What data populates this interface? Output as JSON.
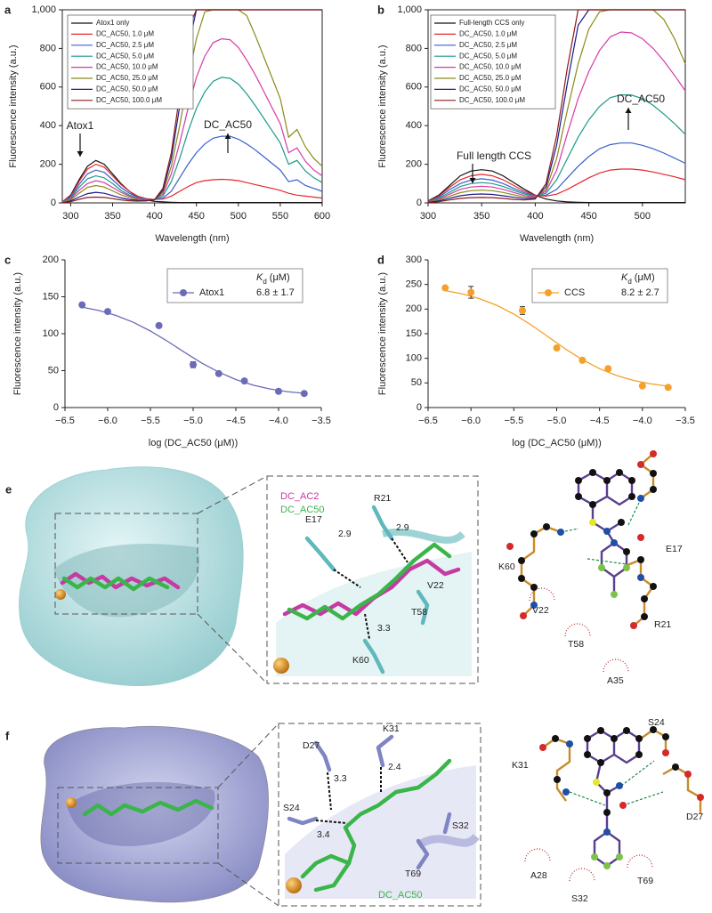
{
  "chart_data": [
    {
      "type": "line",
      "label": "a",
      "xlabel": "Wavelength (nm)",
      "ylabel": "Fluorescence intensity (a.u.)",
      "annotations": [
        "Atox1",
        "DC_AC50"
      ],
      "x": [
        290,
        300,
        310,
        320,
        330,
        340,
        350,
        360,
        370,
        380,
        390,
        400,
        410,
        420,
        430,
        440,
        450,
        460,
        470,
        480,
        490,
        500,
        510,
        520,
        530,
        540,
        550,
        560,
        570,
        580,
        590,
        600
      ],
      "xlim": [
        290,
        600
      ],
      "xticks": [
        300,
        350,
        400,
        450,
        500,
        550,
        600
      ],
      "ylim": [
        0,
        1000
      ],
      "yticks": [
        0,
        200,
        400,
        600,
        800,
        {
          "value": 1000,
          "label": "1,000"
        }
      ],
      "series": [
        {
          "name": "Atox1 only",
          "color": "#111111",
          "values": [
            5,
            40,
            120,
            190,
            220,
            200,
            150,
            100,
            60,
            30,
            15,
            8,
            5,
            3,
            2,
            2,
            2,
            2,
            2,
            2,
            2,
            2,
            2,
            2,
            2,
            2,
            2,
            2,
            2,
            2,
            2,
            2
          ]
        },
        {
          "name": "DC_AC50, 1.0 μM",
          "color": "#e8262a",
          "values": [
            5,
            35,
            110,
            175,
            200,
            185,
            140,
            95,
            60,
            35,
            22,
            18,
            20,
            35,
            60,
            85,
            105,
            115,
            120,
            122,
            120,
            115,
            105,
            95,
            85,
            75,
            65,
            50,
            40,
            35,
            30,
            25
          ]
        },
        {
          "name": "DC_AC50, 2.5 μM",
          "color": "#3a5fcd",
          "values": [
            4,
            30,
            95,
            150,
            170,
            158,
            120,
            80,
            50,
            30,
            20,
            17,
            25,
            60,
            130,
            200,
            260,
            305,
            335,
            345,
            345,
            330,
            305,
            275,
            240,
            205,
            170,
            110,
            120,
            90,
            75,
            60
          ]
        },
        {
          "name": "DC_AC50, 5.0 μM",
          "color": "#1a9a8a",
          "values": [
            3,
            25,
            80,
            125,
            140,
            130,
            100,
            65,
            40,
            25,
            18,
            17,
            35,
            110,
            230,
            370,
            490,
            575,
            630,
            650,
            645,
            615,
            565,
            505,
            440,
            375,
            310,
            200,
            220,
            165,
            130,
            105
          ]
        },
        {
          "name": "DC_AC50, 10.0 μM",
          "color": "#d63aa6",
          "values": [
            3,
            20,
            65,
            100,
            115,
            105,
            80,
            55,
            35,
            22,
            17,
            17,
            45,
            150,
            310,
            490,
            650,
            760,
            830,
            850,
            845,
            805,
            740,
            665,
            580,
            495,
            410,
            260,
            285,
            215,
            170,
            140
          ]
        },
        {
          "name": "DC_AC50, 25.0 μM",
          "color": "#8a8a1a",
          "values": [
            2,
            15,
            50,
            80,
            90,
            82,
            62,
            42,
            28,
            18,
            15,
            16,
            55,
            190,
            400,
            640,
            850,
            990,
            1000,
            1000,
            1000,
            1000,
            970,
            870,
            760,
            650,
            540,
            340,
            380,
            290,
            230,
            190
          ]
        },
        {
          "name": "DC_AC50, 50.0 μM",
          "color": "#1a1a8a",
          "values": [
            1,
            10,
            30,
            48,
            55,
            50,
            38,
            26,
            18,
            13,
            12,
            16,
            65,
            230,
            500,
            800,
            1000,
            1000,
            1000,
            1000,
            1000,
            1000,
            1000,
            1000,
            1000,
            1000,
            1000,
            1000,
            1000,
            1000,
            1000,
            1000
          ]
        },
        {
          "name": "DC_AC50, 100.0 μM",
          "color": "#8b1a1a",
          "values": [
            1,
            6,
            18,
            28,
            30,
            28,
            22,
            15,
            11,
            9,
            10,
            17,
            75,
            260,
            560,
            900,
            1000,
            1000,
            1000,
            1000,
            1000,
            1000,
            1000,
            1000,
            1000,
            1000,
            1000,
            1000,
            1000,
            1000,
            1000,
            1000
          ]
        }
      ]
    },
    {
      "type": "line",
      "label": "b",
      "xlabel": "Wavelength (nm)",
      "ylabel": "Fluorescence intensity (a.u.)",
      "annotations": [
        "Full length CCS",
        "DC_AC50"
      ],
      "x": [
        300,
        310,
        320,
        330,
        340,
        350,
        360,
        370,
        380,
        390,
        400,
        410,
        420,
        430,
        440,
        450,
        460,
        470,
        480,
        490,
        500,
        510,
        520,
        530,
        540
      ],
      "xlim": [
        300,
        540
      ],
      "xticks": [
        300,
        350,
        400,
        450,
        500
      ],
      "ylim": [
        0,
        1000
      ],
      "yticks": [
        0,
        200,
        400,
        600,
        800,
        {
          "value": 1000,
          "label": "1,000"
        }
      ],
      "series": [
        {
          "name": "Full-length CCS only",
          "color": "#111111",
          "values": [
            10,
            40,
            90,
            140,
            165,
            172,
            165,
            140,
            105,
            70,
            40,
            20,
            10,
            5,
            3,
            2,
            2,
            2,
            2,
            2,
            2,
            2,
            2,
            2,
            2
          ]
        },
        {
          "name": "DC_AC50, 1.0 μM",
          "color": "#e8262a",
          "values": [
            8,
            35,
            80,
            120,
            140,
            148,
            140,
            120,
            90,
            60,
            40,
            35,
            45,
            70,
            100,
            130,
            155,
            170,
            175,
            175,
            170,
            160,
            148,
            135,
            120
          ]
        },
        {
          "name": "DC_AC50, 2.5 μM",
          "color": "#3a5fcd",
          "values": [
            7,
            30,
            68,
            100,
            118,
            125,
            118,
            100,
            75,
            52,
            38,
            40,
            70,
            130,
            190,
            240,
            280,
            302,
            310,
            310,
            298,
            280,
            258,
            232,
            205
          ]
        },
        {
          "name": "DC_AC50, 5.0 μM",
          "color": "#1a9a8a",
          "values": [
            6,
            25,
            55,
            85,
            100,
            105,
            100,
            85,
            65,
            45,
            35,
            50,
            120,
            230,
            340,
            430,
            500,
            545,
            560,
            558,
            540,
            505,
            460,
            410,
            355
          ]
        },
        {
          "name": "DC_AC50, 10.0 μM",
          "color": "#d63aa6",
          "values": [
            5,
            20,
            45,
            70,
            82,
            86,
            82,
            70,
            54,
            38,
            32,
            60,
            170,
            360,
            540,
            680,
            790,
            860,
            885,
            880,
            850,
            800,
            735,
            660,
            580
          ]
        },
        {
          "name": "DC_AC50, 25.0 μM",
          "color": "#8a8a1a",
          "values": [
            4,
            15,
            35,
            53,
            63,
            66,
            63,
            54,
            42,
            30,
            28,
            70,
            230,
            480,
            720,
            900,
            990,
            1000,
            1000,
            1000,
            1000,
            1000,
            950,
            850,
            720
          ]
        },
        {
          "name": "DC_AC50, 50.0 μM",
          "color": "#1a1a8a",
          "values": [
            3,
            10,
            24,
            37,
            44,
            46,
            44,
            37,
            29,
            22,
            24,
            85,
            300,
            620,
            920,
            1000,
            1000,
            1000,
            1000,
            1000,
            1000,
            1000,
            1000,
            1000,
            1000
          ]
        },
        {
          "name": "DC_AC50, 100.0 μM",
          "color": "#8b1a1a",
          "values": [
            2,
            6,
            15,
            23,
            27,
            28,
            27,
            23,
            18,
            15,
            20,
            100,
            350,
            700,
            1000,
            1000,
            1000,
            1000,
            1000,
            1000,
            1000,
            1000,
            1000,
            1000,
            1000
          ]
        }
      ]
    },
    {
      "type": "scatter",
      "label": "c",
      "xlabel": "log (DC_AC50 (μM))",
      "ylabel": "Fluorescence intensity (a.u.)",
      "name": "Atox1",
      "color": "#6b6bb8",
      "kd_symbol": "K",
      "kd_subscript": "d",
      "kd_unit": "(μM)",
      "kd": "6.8 ± 1.7",
      "x": [
        -6.3,
        -6.0,
        -5.4,
        -5.0,
        -4.7,
        -4.4,
        -4.0,
        -3.7
      ],
      "values": [
        139,
        130,
        111,
        58,
        46,
        36,
        22,
        19
      ],
      "errors": [
        2,
        2,
        2,
        4,
        2,
        2,
        2,
        2
      ],
      "fit": {
        "x": [
          -6.3,
          -6.1,
          -5.9,
          -5.7,
          -5.5,
          -5.3,
          -5.1,
          -4.9,
          -4.7,
          -4.5,
          -4.3,
          -4.1,
          -3.9,
          -3.7
        ],
        "values": [
          136,
          131.3,
          124.6,
          115.4,
          103.6,
          89.7,
          74.8,
          60.4,
          47.9,
          37.9,
          30.5,
          25.2,
          21.6,
          19.3
        ]
      },
      "xlim": [
        -6.5,
        -3.5
      ],
      "xticks": [
        {
          "value": -6.5,
          "label": "−6.5"
        },
        {
          "value": -6.0,
          "label": "−6.0"
        },
        {
          "value": -5.5,
          "label": "−5.5"
        },
        {
          "value": -5.0,
          "label": "−5.0"
        },
        {
          "value": -4.5,
          "label": "−4.5"
        },
        {
          "value": -4.0,
          "label": "−4.0"
        },
        {
          "value": -3.5,
          "label": "−3.5"
        }
      ],
      "ylim": [
        0,
        200
      ],
      "yticks": [
        0,
        50,
        100,
        150,
        200
      ]
    },
    {
      "type": "scatter",
      "label": "d",
      "xlabel": "log (DC_AC50 (μM))",
      "ylabel": "Fluorescence intensity (a.u.)",
      "name": "CCS",
      "color": "#f5a02a",
      "kd_symbol": "K",
      "kd_subscript": "d",
      "kd_unit": "(μM)",
      "kd": "8.2 ± 2.7",
      "x": [
        -6.3,
        -6.0,
        -5.4,
        -5.0,
        -4.7,
        -4.4,
        -4.0,
        -3.7
      ],
      "values": [
        243,
        234,
        197,
        121,
        96,
        79,
        44,
        41
      ],
      "errors": [
        3,
        12,
        8,
        3,
        3,
        3,
        3,
        3
      ],
      "fit": {
        "x": [
          -6.3,
          -6.1,
          -5.9,
          -5.7,
          -5.5,
          -5.3,
          -5.1,
          -4.9,
          -4.7,
          -4.5,
          -4.3,
          -4.1,
          -3.9,
          -3.7
        ],
        "values": [
          237.5,
          230.9,
          221.2,
          207.6,
          189.8,
          168,
          143.7,
          119.3,
          97.2,
          79,
          65,
          55,
          48,
          43.4
        ]
      },
      "xlim": [
        -6.5,
        -3.5
      ],
      "xticks": [
        {
          "value": -6.5,
          "label": "−6.5"
        },
        {
          "value": -6.0,
          "label": "−6.0"
        },
        {
          "value": -5.5,
          "label": "−5.5"
        },
        {
          "value": -5.0,
          "label": "−5.0"
        },
        {
          "value": -4.5,
          "label": "−4.5"
        },
        {
          "value": -4.0,
          "label": "−4.0"
        },
        {
          "value": -3.5,
          "label": "−3.5"
        }
      ],
      "ylim": [
        0,
        300
      ],
      "yticks": [
        0,
        50,
        100,
        150,
        200,
        250,
        300
      ]
    }
  ],
  "panel_e": {
    "label": "e",
    "zoom": {
      "ligand_1": "DC_AC2",
      "ligand_2": "DC_AC50",
      "residues": [
        "R21",
        "E17",
        "V22",
        "T58",
        "K60"
      ],
      "distances": [
        "2.9",
        "2.9",
        "3.3"
      ]
    },
    "interaction_map": {
      "residues": [
        "E17",
        "K60",
        "R21",
        "V22",
        "T58",
        "A35"
      ]
    }
  },
  "panel_f": {
    "label": "f",
    "zoom": {
      "ligand": "DC_AC50",
      "residues": [
        "D27",
        "K31",
        "S24",
        "S32",
        "T69"
      ],
      "distances": [
        "3.3",
        "2.4",
        "3.4"
      ]
    },
    "interaction_map": {
      "residues": [
        "S24",
        "K31",
        "D27",
        "A28",
        "S32",
        "T69"
      ]
    }
  }
}
